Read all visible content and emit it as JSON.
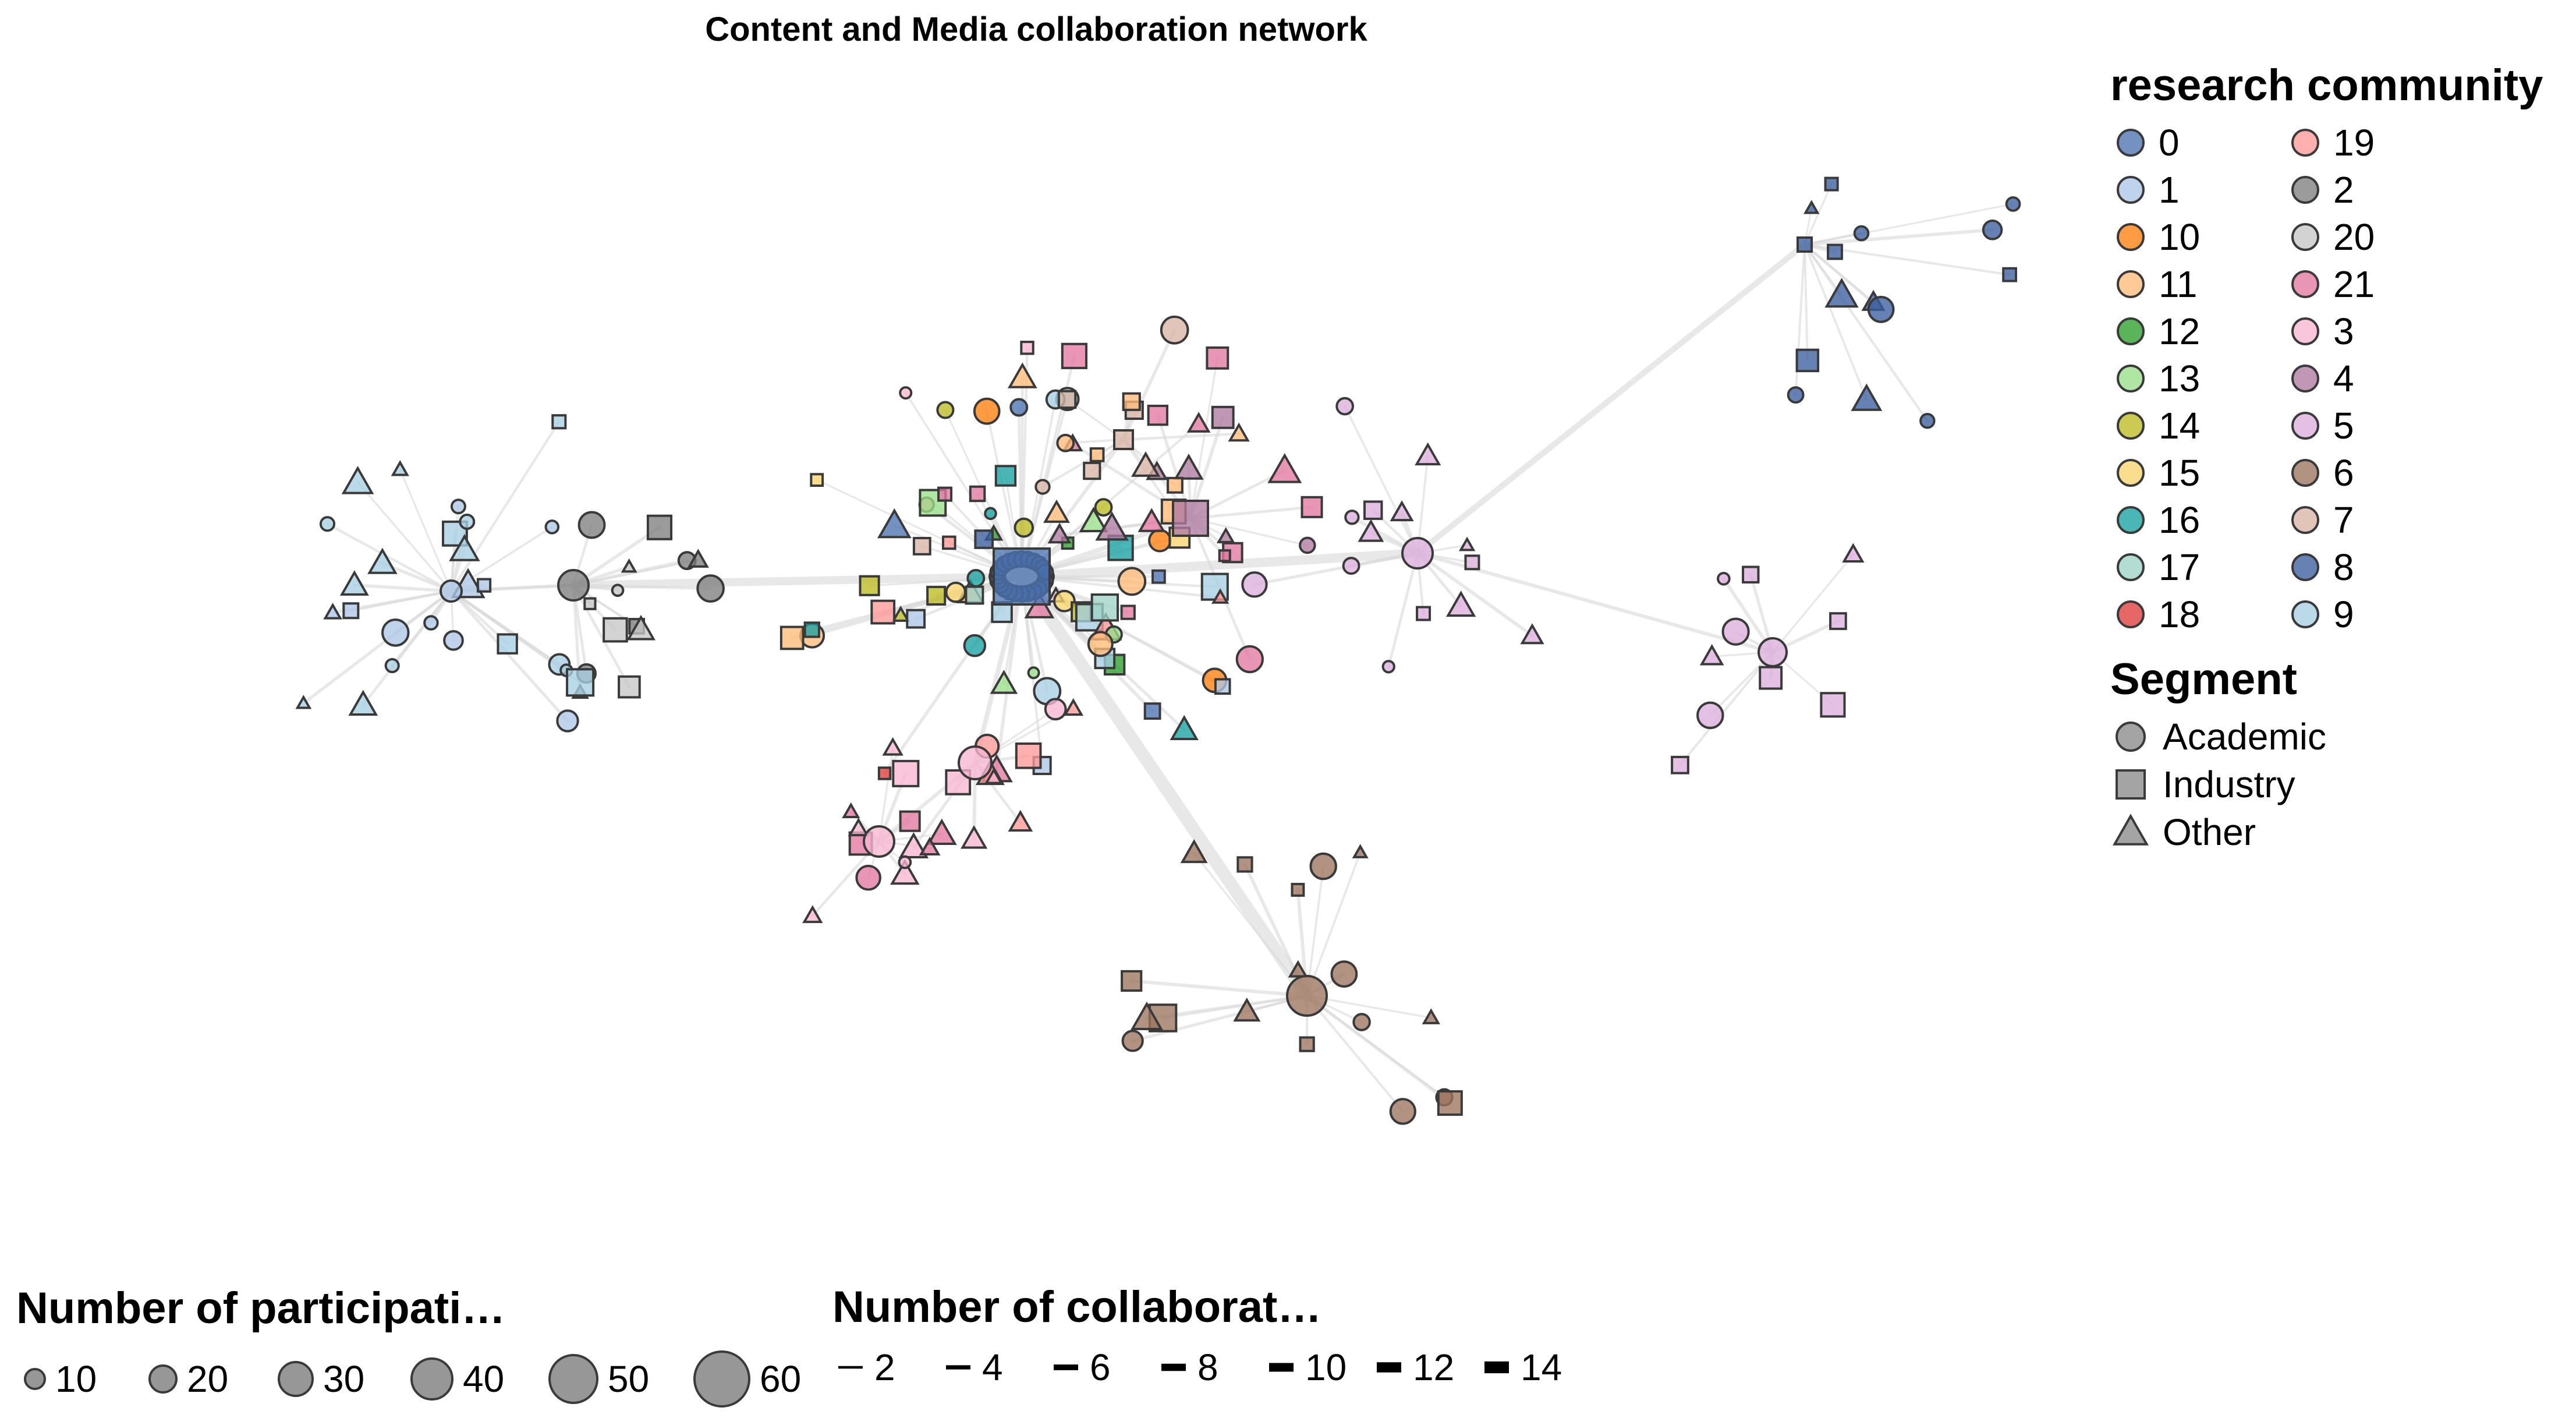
{
  "chart_data": {
    "type": "network",
    "title": "Content and Media collaboration network",
    "community_legend": {
      "title": "research community",
      "items": [
        {
          "label": "0",
          "color": "#4c72b0"
        },
        {
          "label": "1",
          "color": "#aec7e8"
        },
        {
          "label": "10",
          "color": "#ff7f0e"
        },
        {
          "label": "11",
          "color": "#ffbb78"
        },
        {
          "label": "12",
          "color": "#2ca02c"
        },
        {
          "label": "13",
          "color": "#98df8a"
        },
        {
          "label": "14",
          "color": "#bcbd22"
        },
        {
          "label": "15",
          "color": "#f9d56e"
        },
        {
          "label": "16",
          "color": "#17a2a2"
        },
        {
          "label": "17",
          "color": "#9ed2c6"
        },
        {
          "label": "18",
          "color": "#e03c3c"
        },
        {
          "label": "19",
          "color": "#ff9896"
        },
        {
          "label": "2",
          "color": "#7f7f7f"
        },
        {
          "label": "20",
          "color": "#c7c7c7"
        },
        {
          "label": "21",
          "color": "#e377a2"
        },
        {
          "label": "3",
          "color": "#f7b6d2"
        },
        {
          "label": "4",
          "color": "#b07aa1"
        },
        {
          "label": "5",
          "color": "#dcb0dc"
        },
        {
          "label": "6",
          "color": "#9c755f"
        },
        {
          "label": "7",
          "color": "#d8b5a5"
        },
        {
          "label": "8",
          "color": "#3b5fa0"
        },
        {
          "label": "9",
          "color": "#a6cee3"
        }
      ]
    },
    "segment_legend": {
      "title": "Segment",
      "items": [
        {
          "label": "Academic",
          "shape": "circle"
        },
        {
          "label": "Industry",
          "shape": "square"
        },
        {
          "label": "Other",
          "shape": "triangle"
        }
      ]
    },
    "size_legend": {
      "title": "Number of participati…",
      "items": [
        {
          "label": "10",
          "value": 10
        },
        {
          "label": "20",
          "value": 20
        },
        {
          "label": "30",
          "value": 30
        },
        {
          "label": "40",
          "value": 40
        },
        {
          "label": "50",
          "value": 50
        },
        {
          "label": "60",
          "value": 60
        }
      ]
    },
    "width_legend": {
      "title": "Number of collaborat…",
      "items": [
        {
          "label": "2",
          "value": 2
        },
        {
          "label": "4",
          "value": 4
        },
        {
          "label": "6",
          "value": 6
        },
        {
          "label": "8",
          "value": 8
        },
        {
          "label": "10",
          "value": 10
        },
        {
          "label": "12",
          "value": 12
        },
        {
          "label": "14",
          "value": 14
        }
      ]
    }
  }
}
